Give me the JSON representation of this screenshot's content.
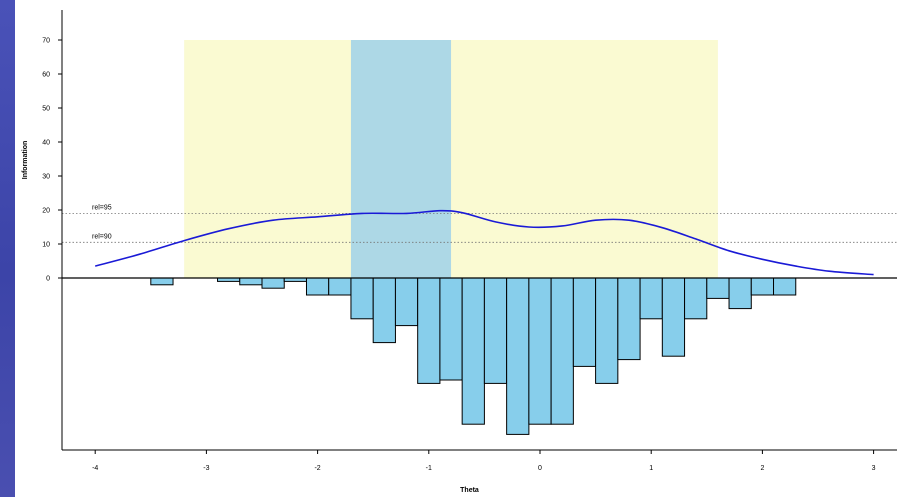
{
  "chart_data": {
    "type": "bar",
    "title": "",
    "xlabel": "Theta",
    "ylabel": "Information",
    "xlim": [
      -4.2,
      3.2
    ],
    "ylim": [
      -48,
      72
    ],
    "x_ticks": [
      "-4",
      "-3",
      "-2",
      "-1",
      "0",
      "1",
      "2",
      "3"
    ],
    "x_tick_values": [
      -4,
      -3,
      -2,
      -1,
      0,
      1,
      2,
      3
    ],
    "y_ticks": [
      "0",
      "10",
      "20",
      "30",
      "40",
      "50",
      "60",
      "70"
    ],
    "y_tick_values": [
      0,
      10,
      20,
      30,
      40,
      50,
      60,
      70
    ],
    "grid": false,
    "shaded_regions": [
      {
        "x_start": -3.2,
        "x_end": 1.6,
        "color": "#fafad2"
      },
      {
        "x_start": -1.7,
        "x_end": -0.8,
        "color": "#add8e6"
      }
    ],
    "reference_lines": [
      {
        "y": 19,
        "label": "rel=95",
        "style": "dotted"
      },
      {
        "y": 10.5,
        "label": "rel=90",
        "style": "dotted"
      }
    ],
    "series": [
      {
        "type": "line",
        "color": "#1a1ad6",
        "x": [
          -4.0,
          -3.6,
          -3.2,
          -2.8,
          -2.4,
          -2.0,
          -1.6,
          -1.2,
          -0.9,
          -0.7,
          -0.4,
          -0.1,
          0.2,
          0.5,
          0.8,
          1.1,
          1.4,
          1.7,
          2.0,
          2.3,
          2.6,
          3.0
        ],
        "y": [
          3.5,
          7,
          11,
          14.5,
          17,
          18,
          19,
          19,
          19.8,
          19.2,
          16.5,
          15,
          15.3,
          17,
          17,
          14.8,
          11.5,
          8,
          5.5,
          3.5,
          2,
          1
        ]
      },
      {
        "type": "bar",
        "color": "#87ceeb",
        "x": [
          -3.4,
          -2.8,
          -2.6,
          -2.4,
          -2.2,
          -2.0,
          -1.8,
          -1.6,
          -1.4,
          -1.2,
          -1.0,
          -0.8,
          -0.6,
          -0.4,
          -0.2,
          0.0,
          0.2,
          0.4,
          0.6,
          0.8,
          1.0,
          1.2,
          1.4,
          1.6,
          1.8,
          2.0,
          2.2,
          2.4
        ],
        "values": [
          -2,
          -1,
          -2,
          -3,
          -1,
          -5,
          -5,
          -12,
          -19,
          -14,
          -31,
          -30,
          -43,
          -31,
          -46,
          -43,
          -43,
          -26,
          -31,
          -24,
          -12,
          -23,
          -12,
          -6,
          -9,
          -5,
          -5,
          0
        ]
      }
    ]
  }
}
